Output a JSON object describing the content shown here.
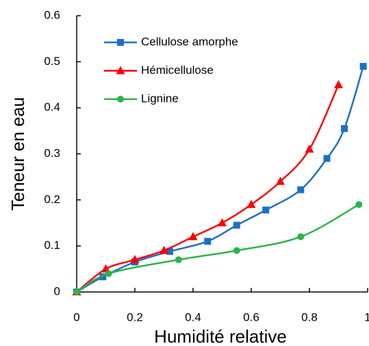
{
  "chart_data": {
    "type": "line",
    "xlabel": "Humidité relative",
    "ylabel": "Teneur en eau",
    "xlim": [
      0,
      1
    ],
    "ylim": [
      0,
      0.6
    ],
    "xticks": [
      0,
      0.2,
      0.4,
      0.6,
      0.8,
      1
    ],
    "yticks": [
      0,
      0.1,
      0.2,
      0.3,
      0.4,
      0.5,
      0.6
    ],
    "grid": false,
    "legend": "upper left",
    "series": [
      {
        "name": "Cellulose amorphe",
        "color": "#1f6fc6",
        "marker": "square",
        "x": [
          0,
          0.09,
          0.2,
          0.32,
          0.45,
          0.55,
          0.65,
          0.77,
          0.86,
          0.92,
          0.985
        ],
        "values": [
          0,
          0.033,
          0.065,
          0.088,
          0.11,
          0.145,
          0.178,
          0.222,
          0.29,
          0.355,
          0.49
        ]
      },
      {
        "name": "Hémicellulose",
        "color": "#ff0000",
        "marker": "triangle",
        "x": [
          0,
          0.1,
          0.2,
          0.3,
          0.4,
          0.5,
          0.6,
          0.7,
          0.8,
          0.9
        ],
        "values": [
          0,
          0.05,
          0.07,
          0.09,
          0.12,
          0.15,
          0.19,
          0.24,
          0.31,
          0.45
        ]
      },
      {
        "name": "Lignine",
        "color": "#2db34a",
        "marker": "circle",
        "x": [
          0,
          0.11,
          0.35,
          0.55,
          0.77,
          0.97
        ],
        "values": [
          0,
          0.04,
          0.07,
          0.09,
          0.12,
          0.19
        ]
      }
    ]
  }
}
